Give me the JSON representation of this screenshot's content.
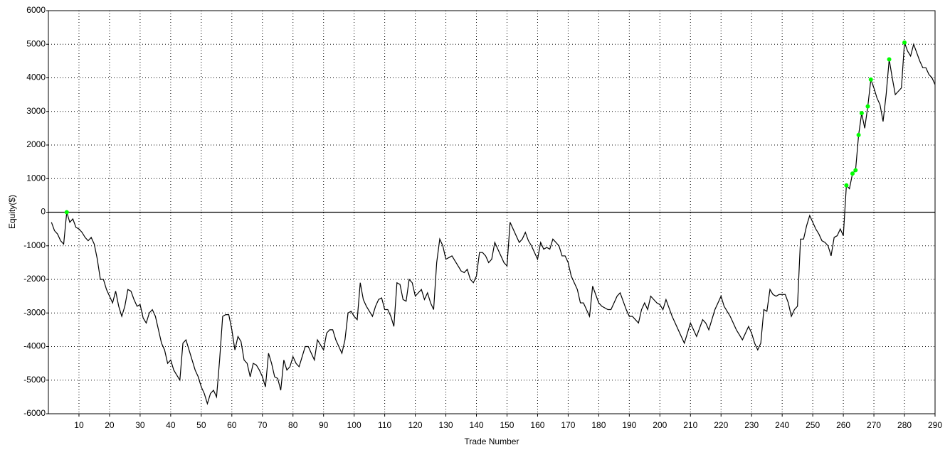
{
  "chart_data": {
    "type": "line",
    "xlabel": "Trade Number",
    "ylabel": "Equity($)",
    "xlim": [
      0,
      290
    ],
    "ylim": [
      -6000,
      6000
    ],
    "xticks": [
      10,
      20,
      30,
      40,
      50,
      60,
      70,
      80,
      90,
      100,
      110,
      120,
      130,
      140,
      150,
      160,
      170,
      180,
      190,
      200,
      210,
      220,
      230,
      240,
      250,
      260,
      270,
      280,
      290
    ],
    "yticks": [
      -6000,
      -5000,
      -4000,
      -3000,
      -2000,
      -1000,
      0,
      1000,
      2000,
      3000,
      4000,
      5000,
      6000
    ],
    "grid": true,
    "color": "#000000",
    "x": [
      1,
      2,
      3,
      4,
      5,
      6,
      7,
      8,
      9,
      10,
      11,
      12,
      13,
      14,
      15,
      16,
      17,
      18,
      19,
      20,
      21,
      22,
      23,
      24,
      25,
      26,
      27,
      28,
      29,
      30,
      31,
      32,
      33,
      34,
      35,
      36,
      37,
      38,
      39,
      40,
      41,
      42,
      43,
      44,
      45,
      46,
      47,
      48,
      49,
      50,
      51,
      52,
      53,
      54,
      55,
      56,
      57,
      58,
      59,
      60,
      61,
      62,
      63,
      64,
      65,
      66,
      67,
      68,
      69,
      70,
      71,
      72,
      73,
      74,
      75,
      76,
      77,
      78,
      79,
      80,
      81,
      82,
      83,
      84,
      85,
      86,
      87,
      88,
      89,
      90,
      91,
      92,
      93,
      94,
      95,
      96,
      97,
      98,
      99,
      100,
      101,
      102,
      103,
      104,
      105,
      106,
      107,
      108,
      109,
      110,
      111,
      112,
      113,
      114,
      115,
      116,
      117,
      118,
      119,
      120,
      121,
      122,
      123,
      124,
      125,
      126,
      127,
      128,
      129,
      130,
      131,
      132,
      133,
      134,
      135,
      136,
      137,
      138,
      139,
      140,
      141,
      142,
      143,
      144,
      145,
      146,
      147,
      148,
      149,
      150,
      151,
      152,
      153,
      154,
      155,
      156,
      157,
      158,
      159,
      160,
      161,
      162,
      163,
      164,
      165,
      166,
      167,
      168,
      169,
      170,
      171,
      172,
      173,
      174,
      175,
      176,
      177,
      178,
      179,
      180,
      181,
      182,
      183,
      184,
      185,
      186,
      187,
      188,
      189,
      190,
      191,
      192,
      193,
      194,
      195,
      196,
      197,
      198,
      199,
      200,
      201,
      202,
      203,
      204,
      205,
      206,
      207,
      208,
      209,
      210,
      211,
      212,
      213,
      214,
      215,
      216,
      217,
      218,
      219,
      220,
      221,
      222,
      223,
      224,
      225,
      226,
      227,
      228,
      229,
      230,
      231,
      232,
      233,
      234,
      235,
      236,
      237,
      238,
      239,
      240,
      241,
      242,
      243,
      244,
      245,
      246,
      247,
      248,
      249,
      250,
      251,
      252,
      253,
      254,
      255,
      256,
      257,
      258,
      259,
      260,
      261,
      262,
      263,
      264,
      265,
      266,
      267,
      268,
      269,
      270,
      271,
      272,
      273,
      274,
      275,
      276,
      277,
      278,
      279,
      280,
      281,
      282,
      283,
      284,
      285,
      286,
      287,
      288,
      289,
      290
    ],
    "values": [
      -300,
      -550,
      -650,
      -850,
      -950,
      0,
      -300,
      -200,
      -450,
      -500,
      -600,
      -750,
      -850,
      -750,
      -950,
      -1400,
      -2000,
      -2000,
      -2300,
      -2500,
      -2700,
      -2350,
      -2800,
      -3100,
      -2800,
      -2300,
      -2350,
      -2600,
      -2800,
      -2750,
      -3150,
      -3300,
      -3000,
      -2900,
      -3100,
      -3500,
      -3900,
      -4100,
      -4500,
      -4400,
      -4700,
      -4850,
      -5000,
      -3900,
      -3800,
      -4100,
      -4400,
      -4700,
      -4900,
      -5200,
      -5400,
      -5700,
      -5400,
      -5300,
      -5500,
      -4400,
      -3100,
      -3050,
      -3050,
      -3500,
      -4100,
      -3700,
      -3850,
      -4400,
      -4500,
      -4900,
      -4500,
      -4550,
      -4700,
      -4900,
      -5200,
      -4200,
      -4500,
      -4900,
      -4950,
      -5300,
      -4400,
      -4700,
      -4600,
      -4300,
      -4500,
      -4600,
      -4300,
      -4000,
      -4000,
      -4200,
      -4400,
      -3800,
      -3950,
      -4100,
      -3600,
      -3500,
      -3500,
      -3800,
      -4000,
      -4200,
      -3800,
      -3000,
      -2950,
      -3100,
      -3200,
      -2100,
      -2600,
      -2800,
      -2950,
      -3100,
      -2800,
      -2600,
      -2550,
      -2900,
      -2900,
      -3100,
      -3400,
      -2100,
      -2150,
      -2600,
      -2650,
      -2000,
      -2100,
      -2500,
      -2400,
      -2300,
      -2600,
      -2400,
      -2700,
      -2900,
      -1500,
      -800,
      -1000,
      -1400,
      -1350,
      -1300,
      -1450,
      -1600,
      -1750,
      -1800,
      -1700,
      -2000,
      -2100,
      -1900,
      -1200,
      -1200,
      -1300,
      -1500,
      -1400,
      -900,
      -1100,
      -1300,
      -1500,
      -1600,
      -300,
      -500,
      -700,
      -900,
      -800,
      -600,
      -850,
      -1000,
      -1200,
      -1400,
      -900,
      -1100,
      -1050,
      -1100,
      -800,
      -900,
      -1000,
      -1300,
      -1300,
      -1500,
      -1900,
      -2100,
      -2300,
      -2700,
      -2700,
      -2900,
      -3100,
      -2200,
      -2450,
      -2700,
      -2800,
      -2850,
      -2900,
      -2900,
      -2700,
      -2500,
      -2400,
      -2650,
      -2900,
      -3100,
      -3100,
      -3200,
      -3300,
      -2900,
      -2700,
      -2900,
      -2500,
      -2600,
      -2700,
      -2750,
      -2900,
      -2600,
      -2850,
      -3100,
      -3300,
      -3500,
      -3700,
      -3900,
      -3600,
      -3300,
      -3500,
      -3700,
      -3450,
      -3200,
      -3300,
      -3500,
      -3200,
      -2900,
      -2700,
      -2500,
      -2800,
      -2950,
      -3100,
      -3300,
      -3500,
      -3650,
      -3800,
      -3600,
      -3400,
      -3600,
      -3900,
      -4100,
      -3900,
      -2900,
      -2950,
      -2300,
      -2450,
      -2500,
      -2450,
      -2450,
      -2450,
      -2700,
      -3100,
      -2900,
      -2800,
      -800,
      -800,
      -400,
      -100,
      -300,
      -500,
      -650,
      -850,
      -900,
      -1000,
      -1300,
      -750,
      -700,
      -500,
      -700,
      800,
      700,
      1150,
      1250,
      2300,
      2950,
      2500,
      3150,
      3950,
      3700,
      3400,
      3200,
      2700,
      3500,
      4550,
      4000,
      3500,
      3600,
      3700,
      5050,
      4800,
      4650,
      5000,
      4750,
      4500,
      4300,
      4300,
      4100,
      4000,
      3800
    ],
    "highs": {
      "color": "#00ff00",
      "x": [
        6,
        261,
        263,
        264,
        265,
        266,
        268,
        269,
        275,
        280
      ],
      "values": [
        0,
        800,
        1150,
        1250,
        2300,
        2950,
        3150,
        3950,
        4550,
        5050
      ]
    }
  }
}
